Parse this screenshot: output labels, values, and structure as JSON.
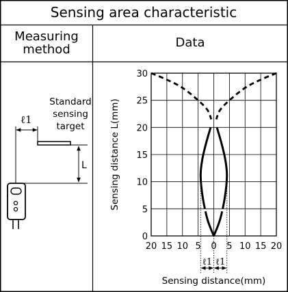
{
  "header": {
    "title": "Sensing area characteristic",
    "left_column": "Measuring\nmethod",
    "right_column": "Data"
  },
  "method": {
    "label_l1": "ℓ1",
    "target_label": [
      "Standard",
      "sensing",
      "target"
    ],
    "label_L": "L"
  },
  "chart_data": {
    "type": "line",
    "xlabel": "Sensing distance(mm)",
    "ylabel": "Sensing distance L(mm)",
    "x_ticks": [
      "20",
      "15",
      "10",
      "5",
      "0",
      "5",
      "10",
      "15",
      "20"
    ],
    "x_tick_values": [
      -20,
      -15,
      -10,
      -5,
      0,
      5,
      10,
      15,
      20
    ],
    "y_ticks": [
      "0",
      "5",
      "10",
      "15",
      "20",
      "25",
      "30"
    ],
    "y_tick_values": [
      0,
      5,
      10,
      15,
      20,
      25,
      30
    ],
    "xlim": [
      -20,
      20
    ],
    "ylim": [
      0,
      30
    ],
    "grid": true,
    "l1_label": "ℓ1",
    "series": [
      {
        "style": "solid",
        "side": "left",
        "points": [
          [
            0,
            0
          ],
          [
            -2,
            3
          ],
          [
            -3.5,
            7
          ],
          [
            -4.2,
            11
          ],
          [
            -3.7,
            14
          ],
          [
            -2.5,
            17
          ],
          [
            -1,
            20
          ]
        ]
      },
      {
        "style": "solid",
        "side": "right",
        "points": [
          [
            0,
            0
          ],
          [
            2,
            3
          ],
          [
            3.5,
            7
          ],
          [
            4.2,
            11
          ],
          [
            3.7,
            14
          ],
          [
            2.5,
            17
          ],
          [
            1,
            20
          ]
        ]
      },
      {
        "style": "dashed",
        "side": "left",
        "points": [
          [
            -20,
            30
          ],
          [
            -15,
            28.8
          ],
          [
            -10,
            27.3
          ],
          [
            -5,
            25
          ],
          [
            -2,
            23.2
          ],
          [
            -0.8,
            21.5
          ]
        ]
      },
      {
        "style": "dashed",
        "side": "right",
        "points": [
          [
            20,
            30
          ],
          [
            15,
            28.8
          ],
          [
            10,
            27.3
          ],
          [
            5,
            25
          ],
          [
            2,
            23.2
          ],
          [
            0.8,
            21.5
          ]
        ]
      }
    ]
  }
}
